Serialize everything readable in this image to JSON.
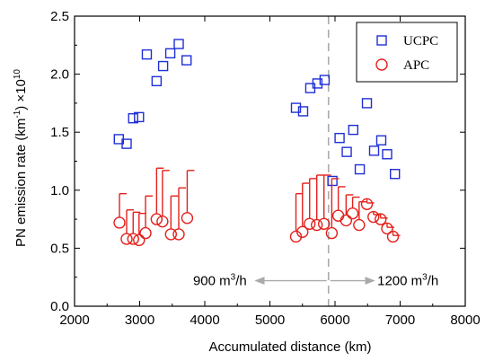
{
  "chart_data": {
    "type": "scatter",
    "xlabel": "Accumulated distance (km)",
    "ylabel": "PN emission rate (km",
    "ylabel_sup1": "-1",
    "ylabel_mid": ") ×10",
    "ylabel_sup2": "10",
    "xlim": [
      2000,
      8000
    ],
    "ylim": [
      0.0,
      2.5
    ],
    "xticks": [
      2000,
      3000,
      4000,
      5000,
      6000,
      7000,
      8000
    ],
    "yticks": [
      0.0,
      0.5,
      1.0,
      1.5,
      2.0,
      2.5
    ],
    "xtick_labels": [
      "2000",
      "3000",
      "4000",
      "5000",
      "6000",
      "7000",
      "8000"
    ],
    "ytick_labels": [
      "0.0",
      "0.5",
      "1.0",
      "1.5",
      "2.0",
      "2.5"
    ],
    "grid": false,
    "legend_position": "top-right",
    "series": [
      {
        "name": "UCPC",
        "marker": "square",
        "color": "#1f2fd6",
        "points": [
          [
            2680,
            1.44
          ],
          [
            2800,
            1.4
          ],
          [
            2900,
            1.62
          ],
          [
            2990,
            1.63
          ],
          [
            3110,
            2.17
          ],
          [
            3260,
            1.94
          ],
          [
            3360,
            2.07
          ],
          [
            3470,
            2.18
          ],
          [
            3600,
            2.26
          ],
          [
            3720,
            2.12
          ],
          [
            5400,
            1.71
          ],
          [
            5510,
            1.68
          ],
          [
            5620,
            1.88
          ],
          [
            5730,
            1.92
          ],
          [
            5840,
            1.95
          ],
          [
            5960,
            1.08
          ],
          [
            6070,
            1.45
          ],
          [
            6180,
            1.33
          ],
          [
            6280,
            1.52
          ],
          [
            6380,
            1.18
          ],
          [
            6490,
            1.75
          ],
          [
            6600,
            1.34
          ],
          [
            6710,
            1.43
          ],
          [
            6800,
            1.31
          ],
          [
            6920,
            1.14
          ]
        ]
      },
      {
        "name": "APC",
        "marker": "circle",
        "color": "#e3211c",
        "points": [
          [
            2690,
            0.72,
            0.97
          ],
          [
            2800,
            0.58,
            0.83
          ],
          [
            2900,
            0.58,
            0.81
          ],
          [
            2990,
            0.57,
            0.8
          ],
          [
            3090,
            0.63,
            0.95
          ],
          [
            3260,
            0.75,
            1.19
          ],
          [
            3350,
            0.73,
            1.17
          ],
          [
            3480,
            0.62,
            0.95
          ],
          [
            3600,
            0.62,
            1.02
          ],
          [
            3730,
            0.76,
            1.17
          ],
          [
            5400,
            0.6,
            0.97
          ],
          [
            5500,
            0.64,
            1.06
          ],
          [
            5610,
            0.71,
            1.1
          ],
          [
            5720,
            0.7,
            1.13
          ],
          [
            5830,
            0.71,
            1.13
          ],
          [
            5950,
            0.63,
            1.1
          ],
          [
            6050,
            0.78,
            1.03
          ],
          [
            6170,
            0.74,
            0.96
          ],
          [
            6270,
            0.8,
            0.94
          ],
          [
            6370,
            0.7,
            0.9
          ],
          [
            6490,
            0.88,
            0.89
          ],
          [
            6590,
            0.77,
            0.79
          ],
          [
            6700,
            0.75,
            0.76
          ],
          [
            6800,
            0.67,
            0.68
          ],
          [
            6890,
            0.6,
            0.61
          ]
        ]
      }
    ],
    "reference_line": {
      "x": 5900,
      "style": "dashed",
      "color": "#aaaaaa"
    },
    "annotations": {
      "left": {
        "text": "900 m",
        "sup": "3",
        "suffix": "/h"
      },
      "right": {
        "text": "1200 m",
        "sup": "3",
        "suffix": "/h"
      },
      "arrow_y": 0.22
    }
  }
}
